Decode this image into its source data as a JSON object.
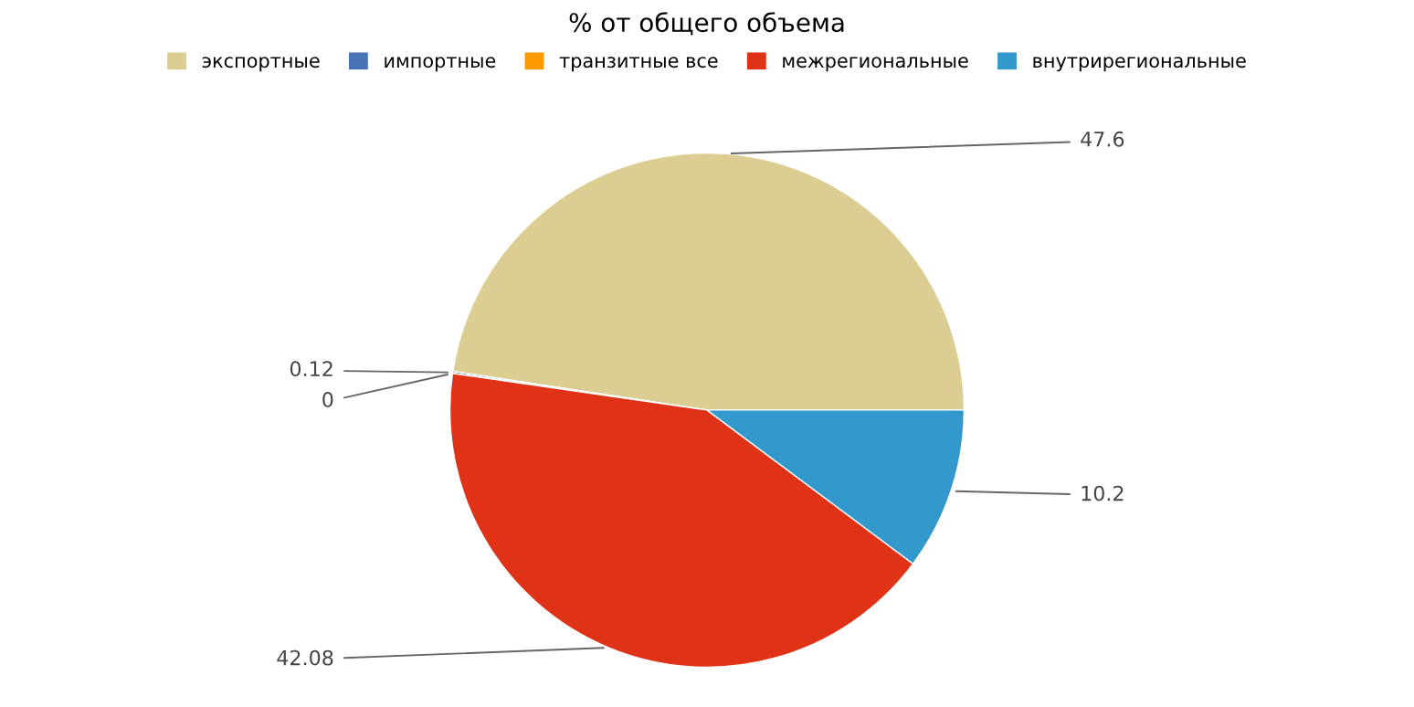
{
  "chart_data": {
    "type": "pie",
    "title": "% от общего объема",
    "categories": [
      "экспортные",
      "импортные",
      "транзитные все",
      "межрегиональные",
      "внутрирегиональные"
    ],
    "values": [
      47.6,
      0.12,
      0,
      42.08,
      10.2
    ],
    "colors": [
      "#dccd92",
      "#4a74b8",
      "#ff9900",
      "#e03216",
      "#3398cc"
    ],
    "value_labels": [
      "47.6",
      "0.12",
      "0",
      "42.08",
      "10.2"
    ],
    "legend": "top"
  }
}
